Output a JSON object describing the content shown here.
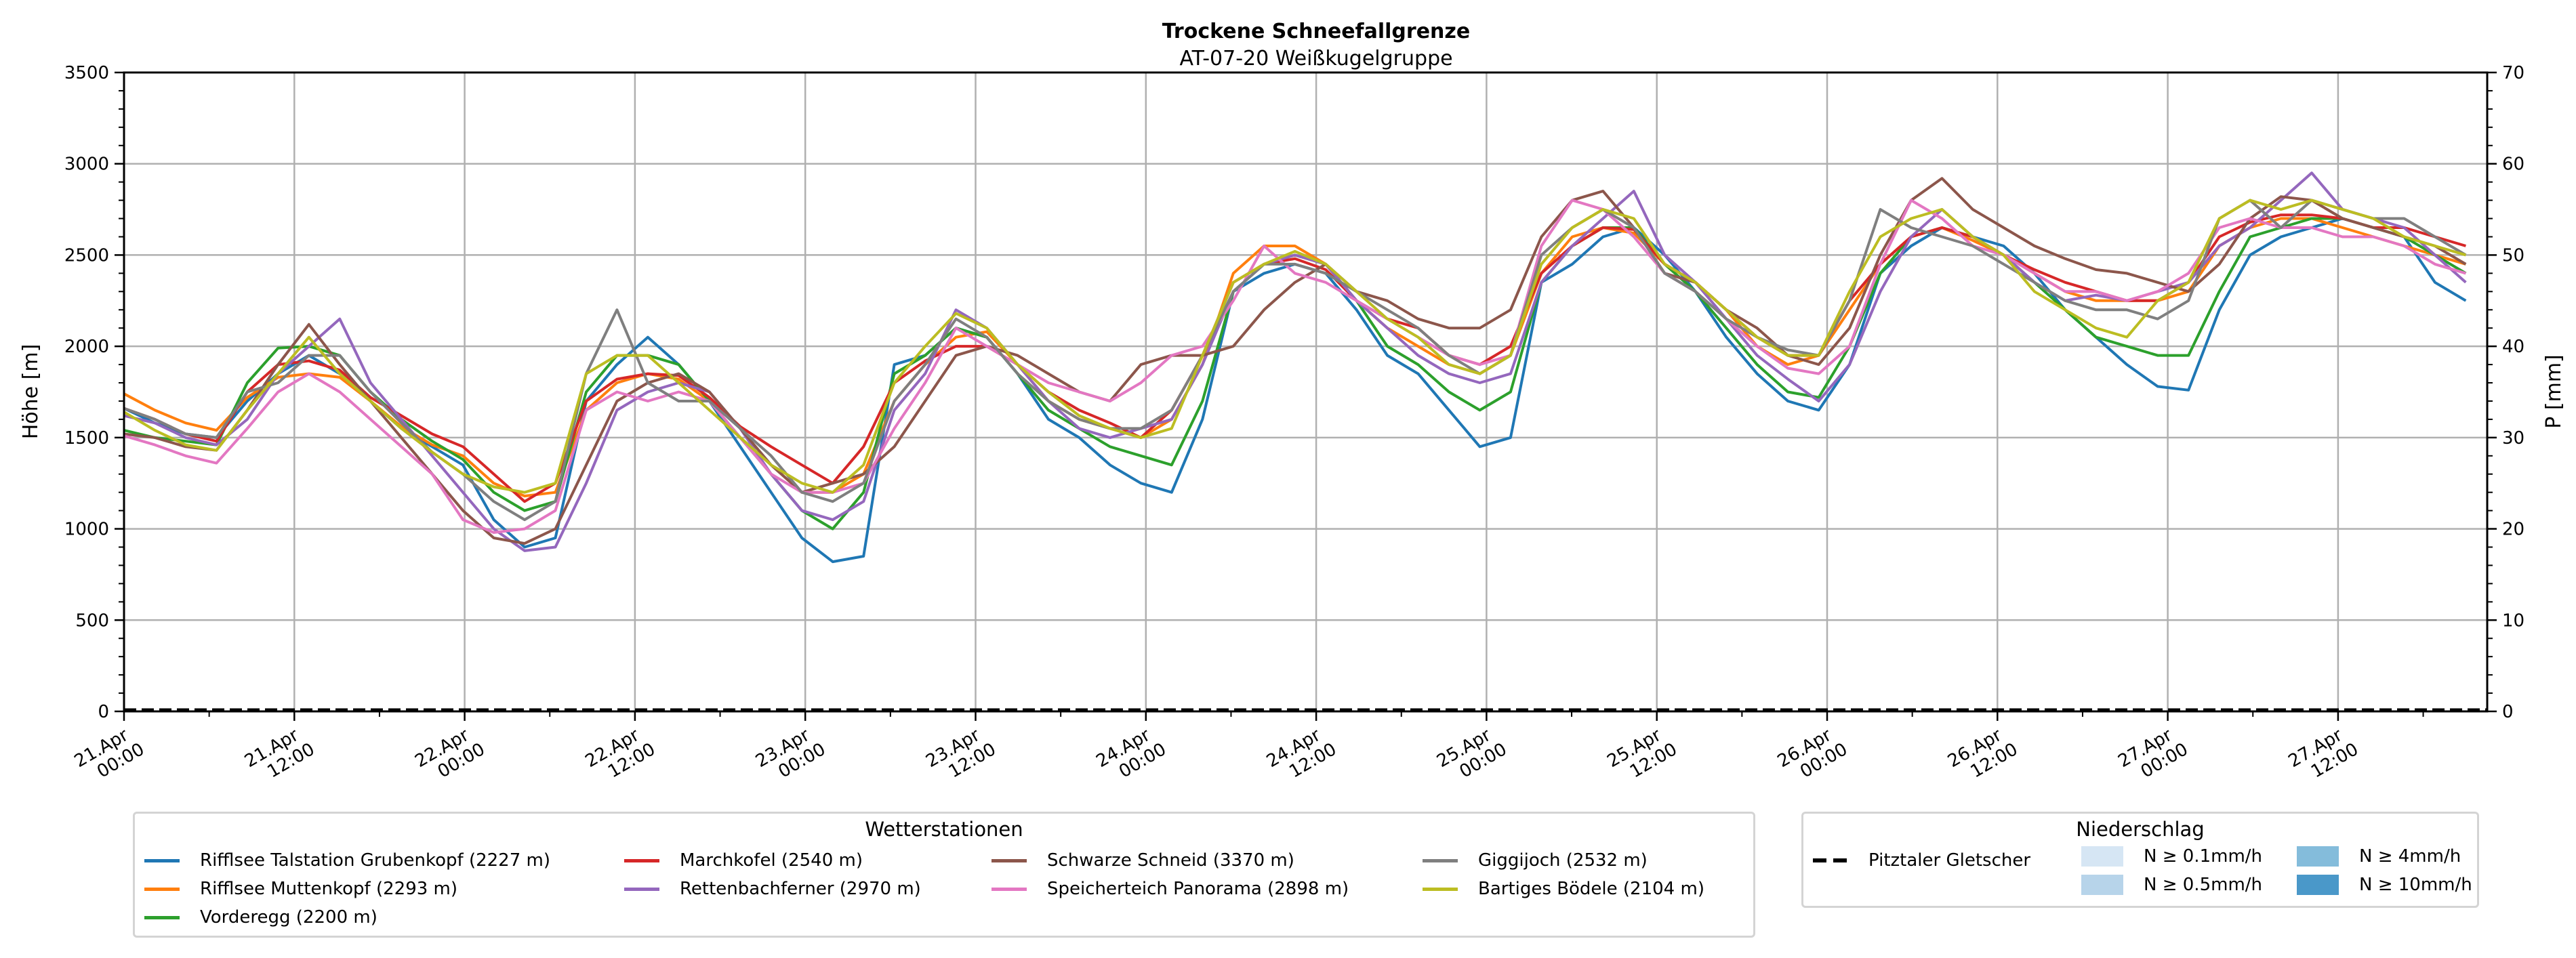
{
  "chart_data": {
    "type": "line",
    "title": "Trockene Schneefallgrenze",
    "subtitle": "AT-07-20 Weißkugelgruppe",
    "ylabel": "Höhe [m]",
    "ylabel_right": "P [mm]",
    "ylim": [
      0,
      3500
    ],
    "ylim_right": [
      0,
      70
    ],
    "yticks": [
      "0",
      "500",
      "1000",
      "1500",
      "2000",
      "2500",
      "3000",
      "3500"
    ],
    "yticks_right": [
      "0",
      "10",
      "20",
      "30",
      "40",
      "50",
      "60",
      "70"
    ],
    "grid": true,
    "x_unit": "hours since 21.Apr 00:00",
    "x_step_hours": 3,
    "xlim_hours": [
      0,
      167
    ],
    "xticks": [
      {
        "line1": "21.Apr",
        "line2": "00:00"
      },
      {
        "line1": "21.Apr",
        "line2": "12:00"
      },
      {
        "line1": "22.Apr",
        "line2": "00:00"
      },
      {
        "line1": "22.Apr",
        "line2": "12:00"
      },
      {
        "line1": "23.Apr",
        "line2": "00:00"
      },
      {
        "line1": "23.Apr",
        "line2": "12:00"
      },
      {
        "line1": "24.Apr",
        "line2": "00:00"
      },
      {
        "line1": "24.Apr",
        "line2": "12:00"
      },
      {
        "line1": "25.Apr",
        "line2": "00:00"
      },
      {
        "line1": "25.Apr",
        "line2": "12:00"
      },
      {
        "line1": "26.Apr",
        "line2": "00:00"
      },
      {
        "line1": "26.Apr",
        "line2": "12:00"
      },
      {
        "line1": "27.Apr",
        "line2": "00:00"
      },
      {
        "line1": "27.Apr",
        "line2": "12:00"
      }
    ],
    "series": [
      {
        "name": "Rifflsee Talstation Grubenkopf (2227 m)",
        "color": "#1f77b4",
        "values": [
          1660,
          1580,
          1520,
          1500,
          1700,
          1850,
          1950,
          1850,
          1700,
          1550,
          1450,
          1350,
          1050,
          900,
          950,
          1700,
          1900,
          2050,
          1900,
          1700,
          1450,
          1200,
          950,
          820,
          850,
          1900,
          1950,
          2100,
          2050,
          1850,
          1600,
          1500,
          1350,
          1250,
          1200,
          1600,
          2300,
          2400,
          2450,
          2400,
          2200,
          1950,
          1850,
          1650,
          1450,
          1500,
          2350,
          2450,
          2600,
          2650,
          2500,
          2300,
          2050,
          1850,
          1700,
          1650,
          1900,
          2400,
          2550,
          2650,
          2600,
          2550,
          2400,
          2200,
          2050,
          1900,
          1780,
          1760,
          2200,
          2500,
          2600,
          2650,
          2700,
          2650,
          2600,
          2350,
          2250
        ]
      },
      {
        "name": "Rifflsee Muttenkopf (2293 m)",
        "color": "#ff7f0e",
        "values": [
          1740,
          1650,
          1580,
          1540,
          1720,
          1830,
          1850,
          1830,
          1700,
          1560,
          1460,
          1400,
          1250,
          1180,
          1200,
          1650,
          1800,
          1850,
          1820,
          1700,
          1500,
          1350,
          1200,
          1200,
          1300,
          1700,
          1900,
          2050,
          2080,
          1900,
          1700,
          1600,
          1550,
          1500,
          1600,
          1900,
          2400,
          2550,
          2550,
          2450,
          2250,
          2100,
          2000,
          1900,
          1850,
          1950,
          2400,
          2600,
          2650,
          2620,
          2450,
          2350,
          2200,
          2000,
          1900,
          1950,
          2200,
          2450,
          2600,
          2650,
          2580,
          2500,
          2400,
          2300,
          2250,
          2250,
          2250,
          2300,
          2550,
          2650,
          2700,
          2700,
          2650,
          2600,
          2550,
          2500,
          2450
        ]
      },
      {
        "name": "Vorderegg (2200 m)",
        "color": "#2ca02c",
        "values": [
          1540,
          1500,
          1480,
          1460,
          1800,
          1990,
          2000,
          1950,
          1750,
          1600,
          1480,
          1380,
          1200,
          1100,
          1150,
          1750,
          1950,
          1950,
          1900,
          1700,
          1500,
          1300,
          1100,
          1000,
          1200,
          1850,
          1950,
          2100,
          2050,
          1850,
          1650,
          1550,
          1450,
          1400,
          1350,
          1700,
          2300,
          2450,
          2500,
          2450,
          2250,
          2000,
          1900,
          1750,
          1650,
          1750,
          2350,
          2550,
          2650,
          2650,
          2450,
          2300,
          2100,
          1900,
          1750,
          1720,
          2000,
          2400,
          2600,
          2650,
          2600,
          2500,
          2350,
          2200,
          2050,
          2000,
          1950,
          1950,
          2300,
          2600,
          2650,
          2700,
          2700,
          2650,
          2600,
          2500,
          2400
        ]
      },
      {
        "name": "Marchkofel (2540 m)",
        "color": "#d62728",
        "values": [
          1660,
          1600,
          1520,
          1480,
          1750,
          1900,
          1920,
          1870,
          1720,
          1620,
          1520,
          1450,
          1300,
          1150,
          1250,
          1700,
          1820,
          1850,
          1840,
          1720,
          1560,
          1450,
          1350,
          1250,
          1450,
          1800,
          1920,
          2000,
          2000,
          1900,
          1750,
          1650,
          1580,
          1500,
          1650,
          1950,
          2350,
          2450,
          2480,
          2420,
          2250,
          2150,
          2100,
          1950,
          1900,
          2000,
          2400,
          2550,
          2650,
          2640,
          2450,
          2350,
          2200,
          2050,
          1950,
          1950,
          2250,
          2450,
          2600,
          2650,
          2600,
          2500,
          2420,
          2350,
          2300,
          2250,
          2250,
          2350,
          2600,
          2680,
          2720,
          2720,
          2700,
          2650,
          2650,
          2600,
          2550
        ]
      },
      {
        "name": "Rettenbachferner (2970 m)",
        "color": "#9467bd",
        "values": [
          1620,
          1580,
          1500,
          1460,
          1600,
          1850,
          2000,
          2150,
          1800,
          1600,
          1400,
          1200,
          1000,
          880,
          900,
          1250,
          1650,
          1750,
          1800,
          1750,
          1550,
          1300,
          1100,
          1050,
          1150,
          1650,
          1850,
          2200,
          2100,
          1900,
          1700,
          1550,
          1500,
          1550,
          1600,
          1900,
          2300,
          2450,
          2500,
          2450,
          2250,
          2100,
          1950,
          1850,
          1800,
          1850,
          2350,
          2550,
          2700,
          2850,
          2500,
          2350,
          2150,
          1950,
          1820,
          1700,
          1900,
          2300,
          2600,
          2750,
          2600,
          2500,
          2350,
          2250,
          2280,
          2250,
          2300,
          2350,
          2550,
          2650,
          2800,
          2950,
          2750,
          2700,
          2650,
          2500,
          2350
        ]
      },
      {
        "name": "Schwarze Schneid (3370 m)",
        "color": "#8c564b",
        "values": [
          1520,
          1500,
          1450,
          1430,
          1650,
          1900,
          2120,
          1900,
          1700,
          1500,
          1300,
          1100,
          950,
          920,
          1000,
          1350,
          1700,
          1800,
          1850,
          1750,
          1550,
          1350,
          1200,
          1250,
          1300,
          1450,
          1700,
          1950,
          2000,
          1950,
          1850,
          1750,
          1700,
          1900,
          1950,
          1950,
          2000,
          2200,
          2350,
          2450,
          2300,
          2250,
          2150,
          2100,
          2100,
          2200,
          2600,
          2800,
          2850,
          2650,
          2400,
          2350,
          2200,
          2100,
          1950,
          1900,
          2100,
          2500,
          2800,
          2920,
          2750,
          2650,
          2550,
          2480,
          2420,
          2400,
          2350,
          2300,
          2450,
          2700,
          2820,
          2800,
          2700,
          2650,
          2600,
          2550,
          2450
        ]
      },
      {
        "name": "Speicherteich Panorama (2898 m)",
        "color": "#e377c2",
        "values": [
          1510,
          1460,
          1400,
          1360,
          1550,
          1750,
          1850,
          1750,
          1600,
          1450,
          1300,
          1050,
          980,
          1000,
          1100,
          1650,
          1750,
          1700,
          1750,
          1700,
          1500,
          1300,
          1200,
          1200,
          1250,
          1550,
          1800,
          2100,
          2000,
          1900,
          1800,
          1750,
          1700,
          1800,
          1950,
          2000,
          2250,
          2550,
          2400,
          2350,
          2250,
          2150,
          2050,
          1950,
          1900,
          1950,
          2550,
          2800,
          2750,
          2600,
          2400,
          2300,
          2150,
          2000,
          1880,
          1850,
          2000,
          2450,
          2800,
          2700,
          2550,
          2500,
          2400,
          2300,
          2300,
          2250,
          2300,
          2400,
          2650,
          2700,
          2650,
          2650,
          2600,
          2600,
          2550,
          2450,
          2400
        ]
      },
      {
        "name": "Giggijoch (2532 m)",
        "color": "#7f7f7f",
        "values": [
          1660,
          1600,
          1520,
          1500,
          1750,
          1800,
          1950,
          1950,
          1750,
          1580,
          1420,
          1300,
          1150,
          1050,
          1150,
          1850,
          2200,
          1800,
          1700,
          1700,
          1550,
          1400,
          1200,
          1150,
          1250,
          1700,
          1900,
          2150,
          2050,
          1850,
          1700,
          1600,
          1550,
          1550,
          1650,
          1950,
          2300,
          2450,
          2450,
          2400,
          2300,
          2200,
          2100,
          1950,
          1850,
          1950,
          2500,
          2650,
          2750,
          2650,
          2400,
          2300,
          2150,
          2050,
          1980,
          1950,
          2250,
          2750,
          2650,
          2600,
          2550,
          2450,
          2350,
          2250,
          2200,
          2200,
          2150,
          2250,
          2700,
          2800,
          2650,
          2800,
          2750,
          2700,
          2700,
          2600,
          2500
        ]
      },
      {
        "name": "Bartiges Bödele (2104 m)",
        "color": "#bcbd22",
        "values": [
          1640,
          1540,
          1460,
          1430,
          1650,
          1850,
          2050,
          1850,
          1700,
          1550,
          1420,
          1300,
          1230,
          1200,
          1250,
          1850,
          1950,
          1950,
          1800,
          1650,
          1500,
          1350,
          1250,
          1200,
          1350,
          1800,
          2000,
          2180,
          2100,
          1900,
          1750,
          1620,
          1550,
          1500,
          1550,
          1950,
          2350,
          2450,
          2520,
          2450,
          2300,
          2150,
          2050,
          1900,
          1850,
          1950,
          2450,
          2650,
          2750,
          2700,
          2450,
          2350,
          2200,
          2050,
          1950,
          1950,
          2300,
          2600,
          2700,
          2750,
          2600,
          2500,
          2300,
          2200,
          2100,
          2050,
          2250,
          2350,
          2700,
          2800,
          2750,
          2800,
          2750,
          2700,
          2600,
          2550,
          2500
        ]
      }
    ],
    "reference_series": {
      "name": "Pitztaler Gletscher",
      "values_constant": 0,
      "axis": "right",
      "style": "dashed",
      "color": "#000000"
    }
  },
  "legend_stations": {
    "title": "Wetterstationen",
    "items": [
      {
        "label": "Rifflsee Talstation Grubenkopf (2227 m)",
        "color": "#1f77b4"
      },
      {
        "label": "Rifflsee Muttenkopf (2293 m)",
        "color": "#ff7f0e"
      },
      {
        "label": "Vorderegg (2200 m)",
        "color": "#2ca02c"
      },
      {
        "label": "Marchkofel (2540 m)",
        "color": "#d62728"
      },
      {
        "label": "Rettenbachferner (2970 m)",
        "color": "#9467bd"
      },
      {
        "label": "Schwarze Schneid (3370 m)",
        "color": "#8c564b"
      },
      {
        "label": "Speicherteich Panorama (2898 m)",
        "color": "#e377c2"
      },
      {
        "label": "Giggijoch (2532 m)",
        "color": "#7f7f7f"
      },
      {
        "label": "Bartiges Bödele (2104 m)",
        "color": "#bcbd22"
      }
    ]
  },
  "legend_precip": {
    "title": "Niederschlag",
    "line_label": "Pitztaler Gletscher",
    "patches": [
      {
        "label": "N ≥ 0.1mm/h",
        "color": "#d6e6f4"
      },
      {
        "label": "N ≥ 0.5mm/h",
        "color": "#b7d4ea"
      },
      {
        "label": "N ≥ 4mm/h",
        "color": "#84bcdb"
      },
      {
        "label": "N ≥ 10mm/h",
        "color": "#4a98c9"
      }
    ]
  }
}
